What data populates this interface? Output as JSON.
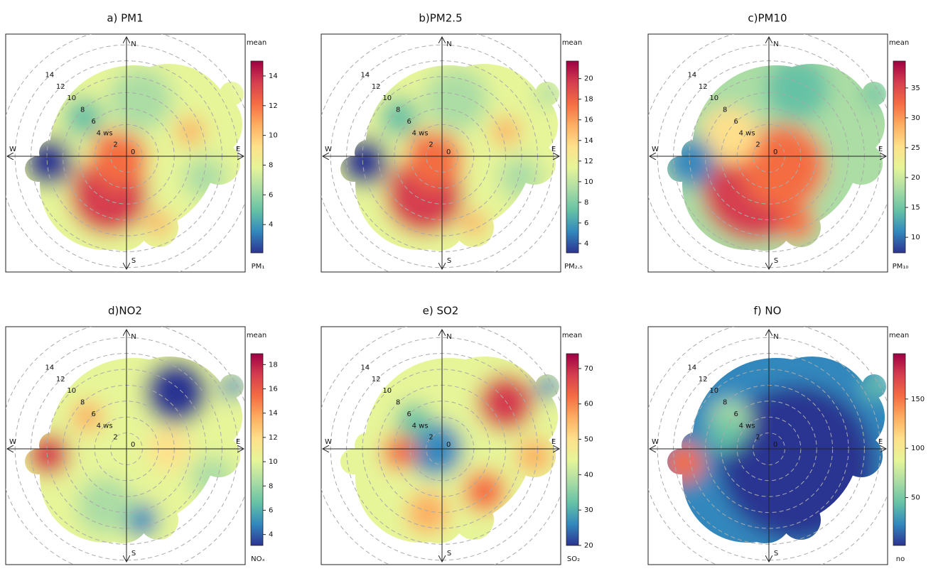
{
  "chart_data": [
    {
      "type": "polar",
      "title": "a) PM1",
      "directions": [
        "N",
        "E",
        "S",
        "W"
      ],
      "origin_label": "0",
      "rticks": [
        2,
        {
          "value": 4,
          "label": "4 ws"
        },
        6,
        8,
        10,
        12,
        14
      ],
      "rlim": [
        0,
        16
      ],
      "colorbar": {
        "title": "mean",
        "label": "PM₁",
        "clim": [
          2.1,
          15
        ],
        "ticks": [
          4,
          6,
          8,
          10,
          12,
          14
        ],
        "palette": [
          "#2c3491",
          "#3288bd",
          "#66c2a5",
          "#abdda4",
          "#e6f598",
          "#fee08b",
          "#fdae61",
          "#f46d43",
          "#d53e4f",
          "#9e0142"
        ]
      }
    },
    {
      "type": "polar",
      "title": "b)PM2.5",
      "directions": [
        "N",
        "E",
        "S",
        "W"
      ],
      "origin_label": "0",
      "rticks": [
        2,
        {
          "value": 4,
          "label": "4 ws"
        },
        6,
        8,
        10,
        12,
        14
      ],
      "rlim": [
        0,
        16
      ],
      "colorbar": {
        "title": "mean",
        "label": "PM₂.₅",
        "clim": [
          3.1,
          21.7
        ],
        "ticks": [
          4,
          6,
          8,
          10,
          12,
          14,
          16,
          18,
          20
        ],
        "palette": [
          "#2c3491",
          "#3288bd",
          "#66c2a5",
          "#abdda4",
          "#e6f598",
          "#fee08b",
          "#fdae61",
          "#f46d43",
          "#d53e4f",
          "#9e0142"
        ]
      }
    },
    {
      "type": "polar",
      "title": "c)PM10",
      "directions": [
        "N",
        "E",
        "S",
        "W"
      ],
      "origin_label": "0",
      "rticks": [
        2,
        {
          "value": 4,
          "label": "4 ws"
        },
        6,
        8,
        10,
        12,
        14
      ],
      "rlim": [
        0,
        16
      ],
      "colorbar": {
        "title": "mean",
        "label": "PM₁₀",
        "clim": [
          7.4,
          39.5
        ],
        "ticks": [
          10,
          15,
          20,
          25,
          30,
          35
        ],
        "palette": [
          "#2c3491",
          "#3288bd",
          "#66c2a5",
          "#abdda4",
          "#e6f598",
          "#fee08b",
          "#fdae61",
          "#f46d43",
          "#d53e4f",
          "#9e0142"
        ]
      }
    },
    {
      "type": "polar",
      "title": "d)NO2",
      "directions": [
        "N",
        "E",
        "S",
        "W"
      ],
      "origin_label": "0",
      "rticks": [
        2,
        {
          "value": 4,
          "label": "4 ws"
        },
        6,
        8,
        10,
        12,
        14
      ],
      "rlim": [
        0,
        16
      ],
      "colorbar": {
        "title": "mean",
        "label": "NOₓ",
        "clim": [
          3.1,
          18.9
        ],
        "ticks": [
          4,
          6,
          8,
          10,
          12,
          14,
          16,
          18
        ],
        "palette": [
          "#2c3491",
          "#3288bd",
          "#66c2a5",
          "#abdda4",
          "#e6f598",
          "#fee08b",
          "#fdae61",
          "#f46d43",
          "#d53e4f",
          "#9e0142"
        ]
      }
    },
    {
      "type": "polar",
      "title": "e) SO2",
      "directions": [
        "N",
        "E",
        "S",
        "W"
      ],
      "origin_label": "0",
      "rticks": [
        2,
        {
          "value": 4,
          "label": "4 ws"
        },
        6,
        8,
        10,
        12,
        14
      ],
      "rlim": [
        0,
        16
      ],
      "colorbar": {
        "title": "mean",
        "label": "SO₂",
        "clim": [
          20,
          74.2
        ],
        "ticks": [
          20,
          30,
          40,
          50,
          60,
          70
        ],
        "palette": [
          "#2c3491",
          "#3288bd",
          "#66c2a5",
          "#abdda4",
          "#e6f598",
          "#fee08b",
          "#fdae61",
          "#f46d43",
          "#d53e4f",
          "#9e0142"
        ]
      }
    },
    {
      "type": "polar",
      "title": "f) NO",
      "directions": [
        "N",
        "E",
        "S",
        "W"
      ],
      "origin_label": "0",
      "rticks": [
        2,
        {
          "value": 4,
          "label": "4 ws"
        },
        6,
        8,
        10,
        12,
        14
      ],
      "rlim": [
        0,
        16
      ],
      "colorbar": {
        "title": "mean",
        "label": "no",
        "clim": [
          1.4,
          196
        ],
        "ticks": [
          50,
          100,
          150
        ],
        "palette": [
          "#2c3491",
          "#3288bd",
          "#66c2a5",
          "#abdda4",
          "#e6f598",
          "#fee08b",
          "#fdae61",
          "#f46d43",
          "#d53e4f",
          "#9e0142"
        ]
      }
    }
  ]
}
